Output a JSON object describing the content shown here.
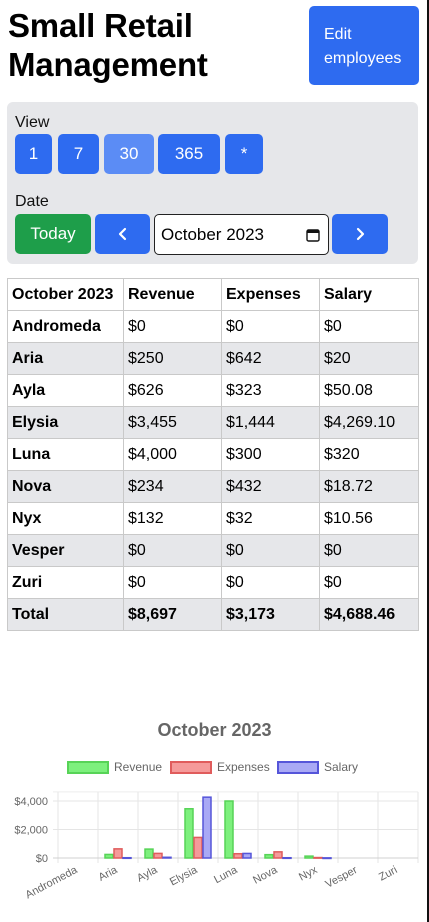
{
  "header": {
    "title_line1": "Small Retail",
    "title_line2": "Management",
    "edit_line1": "Edit",
    "edit_line2": "employees"
  },
  "controls": {
    "view_label": "View",
    "view_options": [
      "1",
      "7",
      "30",
      "365",
      "*"
    ],
    "active_view": "30",
    "date_label": "Date",
    "today_label": "Today",
    "month_value": "October  2023"
  },
  "table": {
    "headers": [
      "October 2023",
      "Revenue",
      "Expenses",
      "Salary"
    ],
    "rows": [
      [
        "Andromeda",
        "$0",
        "$0",
        "$0"
      ],
      [
        "Aria",
        "$250",
        "$642",
        "$20"
      ],
      [
        "Ayla",
        "$626",
        "$323",
        "$50.08"
      ],
      [
        "Elysia",
        "$3,455",
        "$1,444",
        "$4,269.10"
      ],
      [
        "Luna",
        "$4,000",
        "$300",
        "$320"
      ],
      [
        "Nova",
        "$234",
        "$432",
        "$18.72"
      ],
      [
        "Nyx",
        "$132",
        "$32",
        "$10.56"
      ],
      [
        "Vesper",
        "$0",
        "$0",
        "$0"
      ],
      [
        "Zuri",
        "$0",
        "$0",
        "$0"
      ]
    ],
    "total": [
      "Total",
      "$8,697",
      "$3,173",
      "$4,688.46"
    ]
  },
  "colors": {
    "primary": "#2e6bf0",
    "primary_active": "#5b8cf5",
    "success": "#1e9e4a",
    "panel": "#e6e7ea"
  },
  "chart_data": {
    "type": "bar",
    "title": "October 2023",
    "categories": [
      "Andromeda",
      "Aria",
      "Ayla",
      "Elysia",
      "Luna",
      "Nova",
      "Nyx",
      "Vesper",
      "Zuri"
    ],
    "series": [
      {
        "name": "Revenue",
        "values": [
          0,
          250,
          626,
          3455,
          4000,
          234,
          132,
          0,
          0
        ],
        "color": "#7df07d",
        "border": "#57d357"
      },
      {
        "name": "Expenses",
        "values": [
          0,
          642,
          323,
          1444,
          300,
          432,
          32,
          0,
          0
        ],
        "color": "#f59a9a",
        "border": "#e05c5c"
      },
      {
        "name": "Salary",
        "values": [
          0,
          20,
          50.08,
          4269.1,
          320,
          18.72,
          10.56,
          0,
          0
        ],
        "color": "#a9a9f5",
        "border": "#5555d9"
      }
    ],
    "yticks": [
      "$0",
      "$2,000",
      "$4,000"
    ],
    "ylim": [
      0,
      4500
    ],
    "legend": "top",
    "grid": true
  }
}
